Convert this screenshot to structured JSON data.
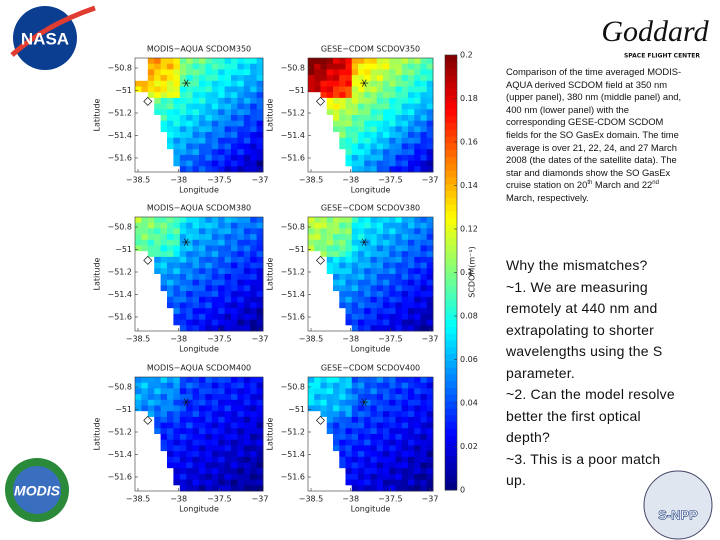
{
  "logos": {
    "nasa": "NASA",
    "goddard": "Goddard",
    "goddard_sub": "SPACE FLIGHT CENTER",
    "modis": "MODIS",
    "snpp": "S-NPP"
  },
  "axes": {
    "xlabel": "Longitude",
    "ylabel": "Latitude",
    "xticks": [
      "−38.5",
      "−38",
      "−37.5",
      "−37"
    ],
    "yticks": [
      "−50.8",
      "−51",
      "−51.2",
      "−51.4",
      "−51.6"
    ]
  },
  "panels": [
    {
      "title": "MODIS−AQUA SCDOM350"
    },
    {
      "title": "GESE−CDOM SCDOV350"
    },
    {
      "title": "MODIS−AQUA SCDOM380"
    },
    {
      "title": "GESE−CDOM SCDOV380"
    },
    {
      "title": "MODIS−AQUA SCDOM400"
    },
    {
      "title": "GESE−CDOM SCDOV400"
    }
  ],
  "colorbar": {
    "label": "SCDOM(m⁻¹)",
    "lim": [
      0,
      0.2
    ],
    "ticks": [
      0,
      0.02,
      0.04,
      0.06,
      0.08,
      0.1,
      0.12,
      0.14,
      0.16,
      0.18,
      0.2
    ]
  },
  "caption_parts": [
    "Comparison of the time averaged MODIS-AQUA derived SCDOM field at 350 nm (upper panel), 380 nm (middle panel) and, 400 nm (lower panel) with the corresponding GESE-CDOM SCDOM fields for the SO GasEx domain. The time average is over 21, 22, 24, and 27 March 2008 (the dates of the satellite data). The star and diamonds show the SO GasEx cruise station on 20",
    "th",
    " March and 22",
    "nd",
    " March, respectively."
  ],
  "bullets": [
    "Why the mismatches?",
    "~1. We are measuring remotely at 440 nm and extrapolating to shorter wavelengths using the S parameter.",
    "~2. Can the model resolve better the first optical depth?",
    "~3. This is a poor match up."
  ]
}
